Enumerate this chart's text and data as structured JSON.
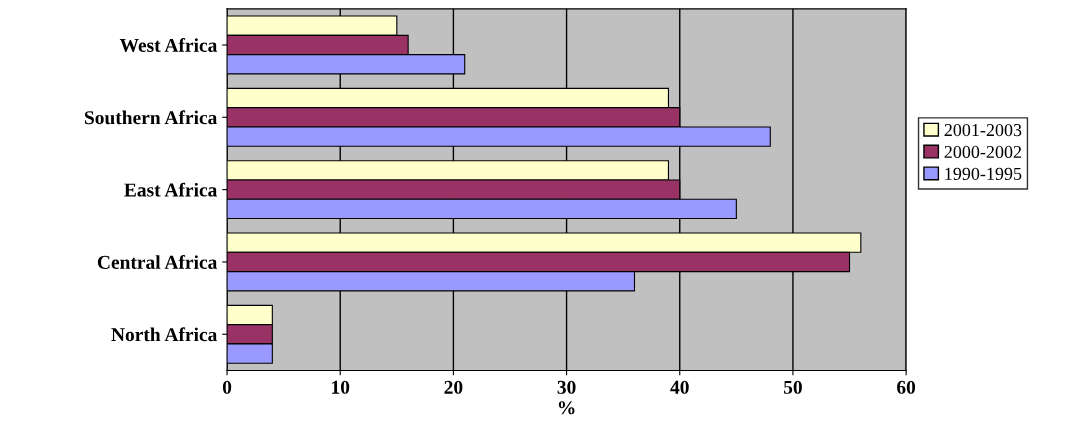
{
  "chart_data": {
    "type": "bar",
    "orientation": "horizontal",
    "xlabel": "%",
    "categories": [
      "West Africa",
      "Southern Africa",
      "East Africa",
      "Central Africa",
      "North Africa"
    ],
    "series": [
      {
        "name": "2001-2003",
        "color": "#ffffcc",
        "values": [
          15,
          39,
          39,
          56,
          4
        ]
      },
      {
        "name": "2000-2002",
        "color": "#993366",
        "values": [
          16,
          40,
          40,
          55,
          4
        ]
      },
      {
        "name": "1990-1995",
        "color": "#9999ff",
        "values": [
          21,
          48,
          45,
          36,
          4
        ]
      }
    ],
    "xlim": [
      0,
      60
    ],
    "xticks": [
      0,
      10,
      20,
      30,
      40,
      50,
      60
    ],
    "grid": "x",
    "legend": "right"
  }
}
